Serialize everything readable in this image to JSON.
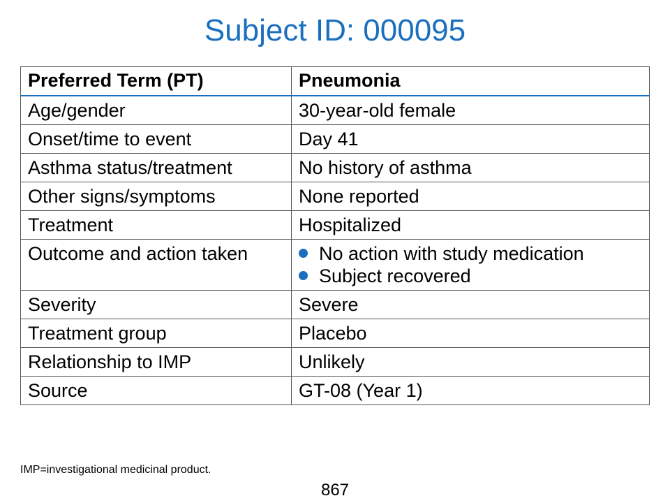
{
  "title": "Subject ID: 000095",
  "table": {
    "header": {
      "label": "Preferred Term (PT)",
      "value": "Pneumonia"
    },
    "rows": [
      {
        "label": "Age/gender",
        "value": "30-year-old female"
      },
      {
        "label": "Onset/time to event",
        "value": "Day 41"
      },
      {
        "label": "Asthma status/treatment",
        "value": "No history of asthma"
      },
      {
        "label": "Other signs/symptoms",
        "value": "None reported"
      },
      {
        "label": "Treatment",
        "value": "Hospitalized"
      },
      {
        "label": "Outcome and action taken",
        "bullets": [
          "No action with study medication",
          "Subject recovered"
        ]
      },
      {
        "label": "Severity",
        "value": "Severe"
      },
      {
        "label": "Treatment group",
        "value": "Placebo"
      },
      {
        "label": "Relationship to IMP",
        "value": "Unlikely"
      },
      {
        "label": "Source",
        "value": "GT-08 (Year 1)"
      }
    ]
  },
  "footnote": "IMP=investigational medicinal product.",
  "page_number": "867",
  "colors": {
    "accent": "#1a6fbe",
    "border": "#555555"
  }
}
